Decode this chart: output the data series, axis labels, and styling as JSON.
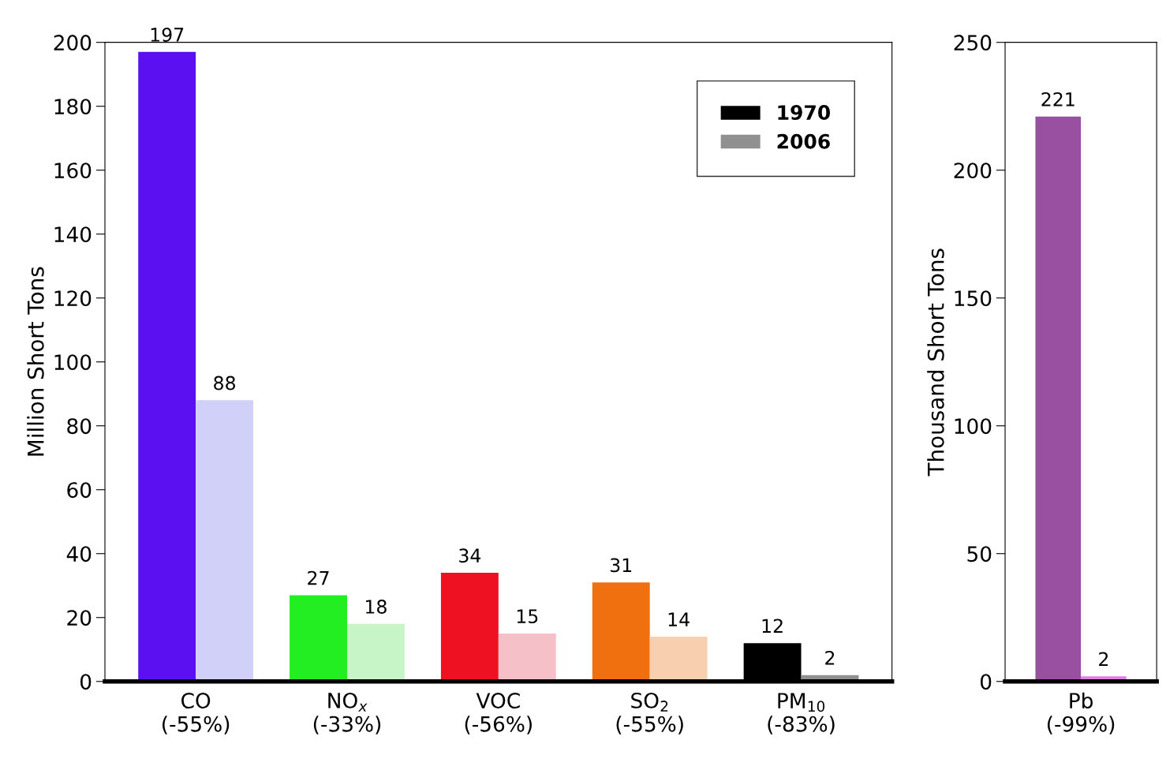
{
  "chart_data": [
    {
      "type": "bar",
      "ylabel": "Million Short Tons",
      "categories": [
        "CO\n(-55%)",
        "NO$_{x}$\n(-33%)",
        "VOC\n(-56%)",
        "SO$_{2}$\n(-55%)",
        "PM$_{10}$\n(-83%)"
      ],
      "series": [
        {
          "name": "1970",
          "color": "#000000",
          "colors": [
            "#5a10f0",
            "#22ee22",
            "#ee1122",
            "#f07010",
            "#000000"
          ],
          "values": [
            197,
            27,
            34,
            31,
            12
          ]
        },
        {
          "name": "2006",
          "color": "#909090",
          "colors": [
            "#d0d0f8",
            "#c8f5c8",
            "#f5c0c8",
            "#f8d0b0",
            "#909090"
          ],
          "values": [
            88,
            18,
            15,
            14,
            2
          ]
        }
      ],
      "ylim": [
        0,
        200
      ],
      "yticks": [
        0,
        20,
        40,
        60,
        80,
        100,
        120,
        140,
        160,
        180,
        200
      ],
      "data_labels": true,
      "legend": "top right",
      "grid": false
    },
    {
      "type": "bar",
      "ylabel": "Thousand Short Tons",
      "categories": [
        "Pb\n(-99%)"
      ],
      "series": [
        {
          "colors": [
            "#9a50a0"
          ],
          "values": [
            221
          ]
        },
        {
          "colors": [
            "#e080e0"
          ],
          "values": [
            2
          ]
        }
      ],
      "ylim": [
        0,
        250
      ],
      "yticks": [
        0,
        50,
        100,
        150,
        200,
        250
      ],
      "data_labels": true,
      "grid": false
    }
  ]
}
